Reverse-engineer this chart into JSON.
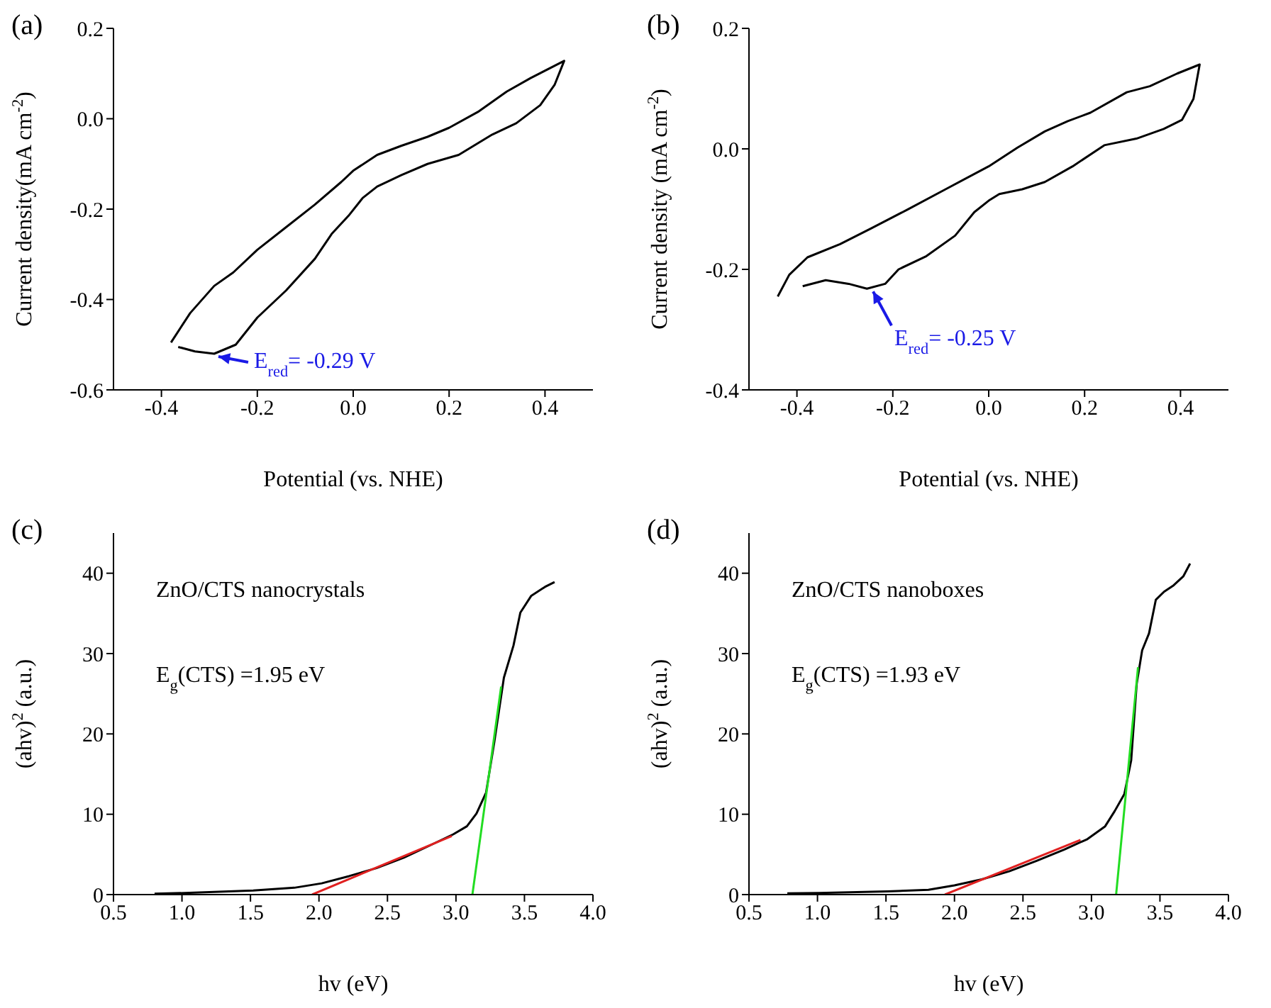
{
  "chart_data": [
    {
      "type": "line",
      "title": "(a)",
      "xlabel": "Potential (vs. NHE)",
      "ylabel": "Current density(mA cm$^{-2}$)",
      "xlim": [
        -0.5,
        0.5
      ],
      "xticks": [
        -0.4,
        -0.2,
        {
          "value": 0,
          "label": "0.0"
        },
        0.2,
        0.4
      ],
      "ylim": [
        -0.6,
        0.2
      ],
      "yticks": [
        -0.6,
        -0.4,
        -0.2,
        {
          "value": 0,
          "label": "0.0"
        },
        0.2
      ],
      "grid": false,
      "legend": false,
      "marker": "none",
      "annotations": [
        {
          "text": "E$_{red}$= -0.29 V",
          "x": -0.29,
          "y": -0.52
        }
      ],
      "series": [
        {
          "color": "#000000",
          "x": [
            -0.38,
            -0.34,
            -0.29,
            -0.25,
            -0.2,
            -0.14,
            -0.08,
            -0.025,
            0.0,
            0.05,
            0.1,
            0.155,
            0.2,
            0.26,
            0.32,
            0.37,
            0.44,
            0.42,
            0.39,
            0.34,
            0.29,
            0.22,
            0.155,
            0.1,
            0.05,
            0.02,
            -0.01,
            -0.045,
            -0.08,
            -0.14,
            -0.2,
            -0.245,
            -0.29,
            -0.33,
            -0.365
          ],
          "values": [
            -0.495,
            -0.43,
            -0.37,
            -0.34,
            -0.29,
            -0.24,
            -0.19,
            -0.14,
            -0.115,
            -0.08,
            -0.06,
            -0.04,
            -0.02,
            0.015,
            0.06,
            0.09,
            0.128,
            0.075,
            0.03,
            -0.01,
            -0.035,
            -0.08,
            -0.1,
            -0.125,
            -0.15,
            -0.175,
            -0.215,
            -0.255,
            -0.31,
            -0.38,
            -0.44,
            -0.5,
            -0.52,
            -0.515,
            -0.505
          ]
        }
      ]
    },
    {
      "type": "line",
      "title": "(b)",
      "xlabel": "Potential (vs. NHE)",
      "ylabel": "Current density (mA cm$^{-2}$)",
      "xlim": [
        -0.5,
        0.5
      ],
      "xticks": [
        -0.4,
        -0.2,
        {
          "value": 0,
          "label": "0.0"
        },
        0.2,
        0.4
      ],
      "ylim": [
        -0.4,
        0.2
      ],
      "yticks": [
        -0.4,
        -0.2,
        {
          "value": 0,
          "label": "0.0"
        },
        0.2
      ],
      "grid": false,
      "legend": false,
      "marker": "none",
      "annotations": [
        {
          "text": "E$_{red}$= -0.25 V",
          "x": -0.25,
          "y": -0.232
        }
      ],
      "series": [
        {
          "color": "#000000",
          "x": [
            -0.44,
            -0.416,
            -0.378,
            -0.31,
            -0.245,
            -0.17,
            -0.09,
            0.0,
            0.06,
            0.117,
            0.165,
            0.212,
            0.288,
            0.336,
            0.393,
            0.44,
            0.427,
            0.403,
            0.365,
            0.308,
            0.241,
            0.175,
            0.117,
            0.07,
            0.022,
            0.0,
            -0.03,
            -0.07,
            -0.13,
            -0.188,
            -0.216,
            -0.254,
            -0.292,
            -0.34,
            -0.388
          ],
          "values": [
            -0.245,
            -0.209,
            -0.18,
            -0.158,
            -0.132,
            -0.101,
            -0.067,
            -0.029,
            0.002,
            0.029,
            0.046,
            0.06,
            0.094,
            0.104,
            0.125,
            0.14,
            0.083,
            0.048,
            0.033,
            0.017,
            0.006,
            -0.029,
            -0.055,
            -0.067,
            -0.075,
            -0.086,
            -0.105,
            -0.144,
            -0.178,
            -0.2,
            -0.224,
            -0.232,
            -0.224,
            -0.218,
            -0.228
          ]
        }
      ]
    },
    {
      "type": "line",
      "title": "(c)",
      "xlabel": "hv (eV)",
      "ylabel": "(ahv)$^{2}$ (a.u.)",
      "xlim": [
        0.5,
        4.0
      ],
      "xticks": [
        0.5,
        {
          "value": 1,
          "label": "1.0"
        },
        1.5,
        {
          "value": 2,
          "label": "2.0"
        },
        2.5,
        {
          "value": 3,
          "label": "3.0"
        },
        3.5,
        {
          "value": 4,
          "label": "4.0"
        }
      ],
      "ylim": [
        0,
        45
      ],
      "yticks": [
        0,
        10,
        20,
        30,
        40
      ],
      "grid": false,
      "legend": false,
      "marker": "none",
      "annotations": [
        "ZnO/CTS nanocrystals",
        "E$_{g}$(CTS) =1.95 eV"
      ],
      "series": [
        {
          "color": "#000000",
          "x": [
            0.8,
            1.02,
            1.52,
            1.82,
            2.02,
            2.22,
            2.42,
            2.62,
            2.82,
            2.98,
            3.08,
            3.15,
            3.22,
            3.28,
            3.35,
            3.42,
            3.47,
            3.55,
            3.65,
            3.72
          ],
          "values": [
            0.1,
            0.2,
            0.5,
            0.85,
            1.4,
            2.3,
            3.3,
            4.6,
            6.2,
            7.5,
            8.5,
            10.1,
            12.7,
            19,
            27,
            31,
            35.1,
            37.2,
            38.3,
            38.9
          ]
        },
        {
          "color": "#e02020",
          "x": [
            1.95,
            2.97
          ],
          "values": [
            0,
            7.3
          ]
        },
        {
          "color": "#22dd22",
          "x": [
            3.12,
            3.33
          ],
          "values": [
            0,
            25.9
          ]
        }
      ]
    },
    {
      "type": "line",
      "title": "(d)",
      "xlabel": "hv (eV)",
      "ylabel": "(ahv)$^{2}$ (a.u.)",
      "xlim": [
        0.5,
        4.0
      ],
      "xticks": [
        0.5,
        {
          "value": 1,
          "label": "1.0"
        },
        1.5,
        {
          "value": 2,
          "label": "2.0"
        },
        2.5,
        {
          "value": 3,
          "label": "3.0"
        },
        3.5,
        {
          "value": 4,
          "label": "4.0"
        }
      ],
      "ylim": [
        0,
        45
      ],
      "yticks": [
        0,
        10,
        20,
        30,
        40
      ],
      "grid": false,
      "legend": false,
      "marker": "none",
      "annotations": [
        "ZnO/CTS nanoboxes",
        "E$_{g}$(CTS) =1.93 eV"
      ],
      "series": [
        {
          "color": "#000000",
          "x": [
            0.78,
            1.01,
            1.51,
            1.81,
            2.0,
            2.2,
            2.4,
            2.6,
            2.8,
            2.97,
            3.1,
            3.17,
            3.24,
            3.29,
            3.33,
            3.37,
            3.42,
            3.47,
            3.53,
            3.6,
            3.67,
            3.72
          ],
          "values": [
            0.15,
            0.2,
            0.4,
            0.6,
            1.15,
            1.9,
            2.9,
            4.2,
            5.6,
            6.9,
            8.5,
            10.4,
            12.5,
            16.7,
            26.2,
            30.4,
            32.5,
            36.7,
            37.7,
            38.5,
            39.6,
            41.2
          ]
        },
        {
          "color": "#e02020",
          "x": [
            1.93,
            2.92
          ],
          "values": [
            0,
            6.8
          ]
        },
        {
          "color": "#22dd22",
          "x": [
            3.18,
            3.34
          ],
          "values": [
            0,
            28.3
          ]
        }
      ]
    }
  ]
}
